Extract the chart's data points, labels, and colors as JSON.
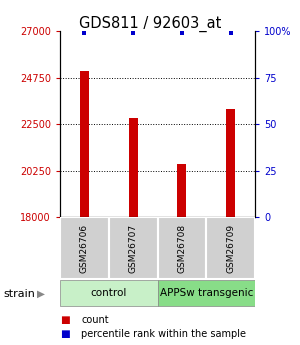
{
  "title": "GDS811 / 92603_at",
  "samples": [
    "GSM26706",
    "GSM26707",
    "GSM26708",
    "GSM26709"
  ],
  "bar_values": [
    25050,
    22800,
    20600,
    23250
  ],
  "percentile_values": [
    99,
    99,
    99,
    99
  ],
  "bar_color": "#cc0000",
  "dot_color": "#0000cc",
  "ylim_left": [
    18000,
    27000
  ],
  "ylim_right": [
    0,
    100
  ],
  "left_ticks": [
    18000,
    20250,
    22500,
    24750,
    27000
  ],
  "right_ticks": [
    0,
    25,
    50,
    75,
    100
  ],
  "right_tick_labels": [
    "0",
    "25",
    "50",
    "75",
    "100%"
  ],
  "dotted_lines": [
    20250,
    22500,
    24750
  ],
  "strain_groups": [
    {
      "label": "control",
      "indices": [
        0,
        1
      ],
      "color": "#c8f0c8"
    },
    {
      "label": "APPSw transgenic",
      "indices": [
        2,
        3
      ],
      "color": "#88dd88"
    }
  ],
  "strain_label": "strain",
  "legend_items": [
    {
      "label": "count",
      "color": "#cc0000"
    },
    {
      "label": "percentile rank within the sample",
      "color": "#0000cc"
    }
  ],
  "bar_width": 0.18,
  "left_tick_color": "#cc0000",
  "right_tick_color": "#0000cc"
}
